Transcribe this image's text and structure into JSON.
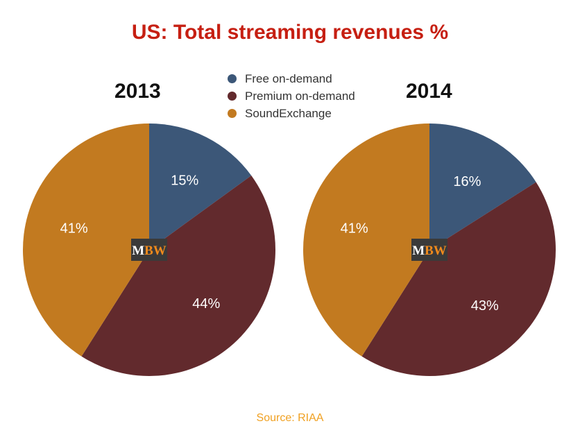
{
  "title": "US: Total streaming revenues %",
  "legend": [
    {
      "label": "Free on-demand",
      "color": "#3c5778"
    },
    {
      "label": "Premium on-demand",
      "color": "#622a2d"
    },
    {
      "label": "SoundExchange",
      "color": "#c27a20"
    }
  ],
  "logo": {
    "m": "M",
    "bw": "BW"
  },
  "source": "Source: RIAA",
  "chart_data": [
    {
      "type": "pie",
      "title": "2013",
      "categories": [
        "Free on-demand",
        "Premium on-demand",
        "SoundExchange"
      ],
      "values": [
        15,
        44,
        41
      ],
      "labels": [
        "15%",
        "44%",
        "41%"
      ],
      "colors": [
        "#3c5778",
        "#622a2d",
        "#c27a20"
      ],
      "legend": "top-center"
    },
    {
      "type": "pie",
      "title": "2014",
      "categories": [
        "Free on-demand",
        "Premium on-demand",
        "SoundExchange"
      ],
      "values": [
        16,
        43,
        41
      ],
      "labels": [
        "16%",
        "43%",
        "41%"
      ],
      "colors": [
        "#3c5778",
        "#622a2d",
        "#c27a20"
      ],
      "legend": "top-center"
    }
  ]
}
